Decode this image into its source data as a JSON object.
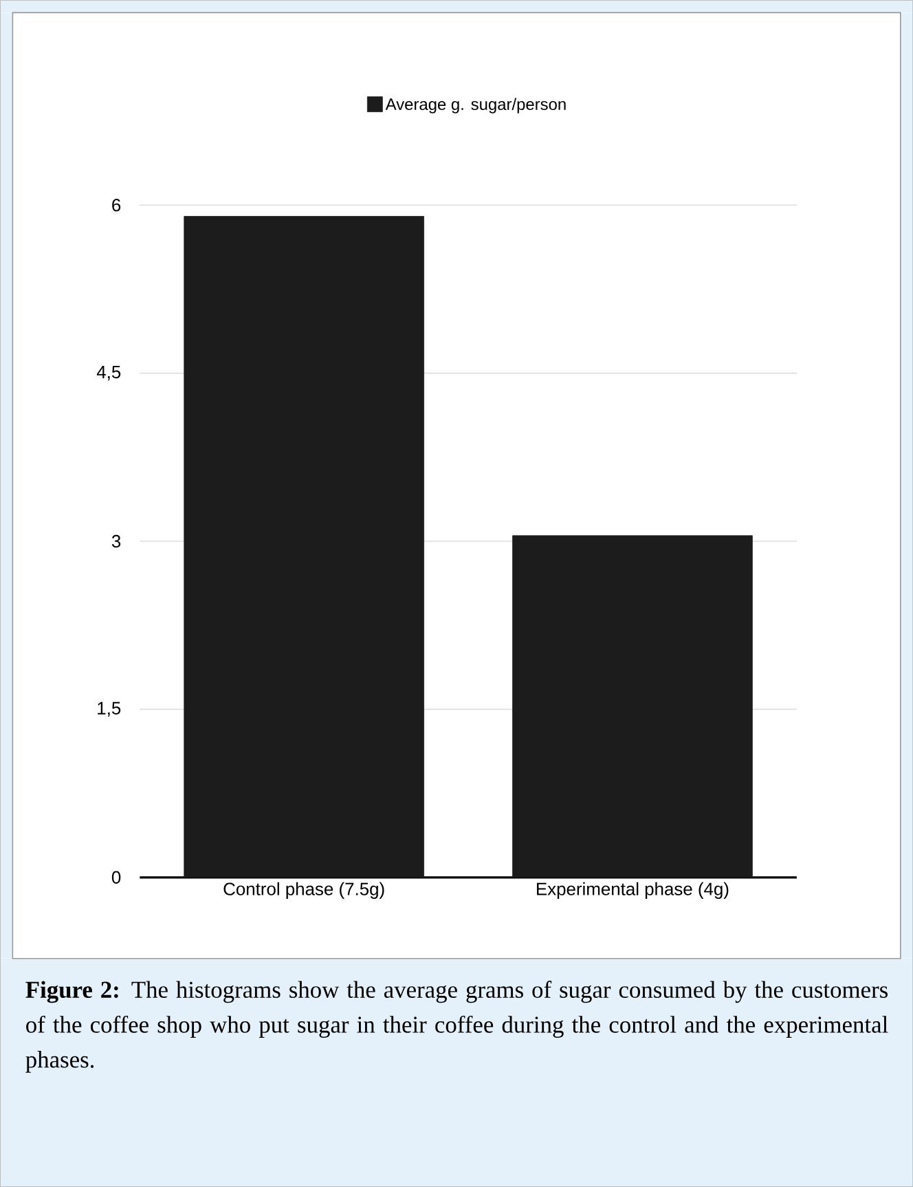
{
  "chart_data": {
    "type": "bar",
    "categories": [
      "Control phase (7.5g)",
      "Experimental phase (4g)"
    ],
    "series": [
      {
        "name": "Average g. sugar/person",
        "color": "#1c1c1c",
        "values": [
          5.9,
          3.05
        ]
      }
    ],
    "ylim": [
      0,
      6
    ],
    "yticks": [
      0,
      {
        "value": 1.5,
        "label": "1,5"
      },
      3,
      {
        "value": 4.5,
        "label": "4,5"
      },
      6
    ],
    "grid": "y",
    "legend": "top",
    "annotations": [
      "**Figure 2:** The histograms show the average grams of sugar consumed by the customers of the coffee shop who put sugar in their coffee during the control and the experimental phases."
    ]
  }
}
